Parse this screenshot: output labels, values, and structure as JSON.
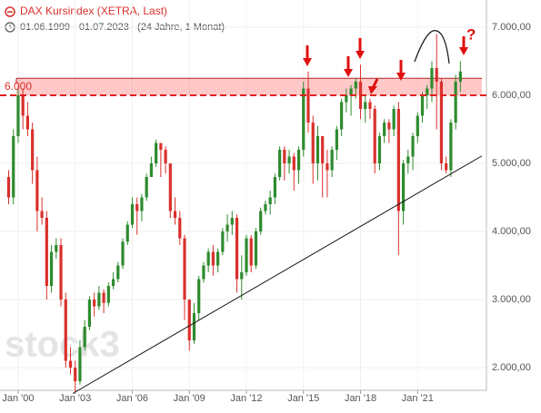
{
  "chart_data": {
    "type": "candlestick",
    "title": "DAX Kursindex (XETRA, Last)",
    "subtitle": "01.06.1999 - 01.07.2023   (24 Jahre, 1 Monat)",
    "watermark": "stock3",
    "annotation": "?",
    "up_color": "#2e8b2e",
    "down_color": "#d9302c",
    "grid": true,
    "ylim": [
      1700,
      7400
    ],
    "yticks": [
      {
        "value": 2000,
        "label": "2.000,00"
      },
      {
        "value": 3000,
        "label": "3.000,00"
      },
      {
        "value": 4000,
        "label": "4.000,00"
      },
      {
        "value": 5000,
        "label": "5.000,00"
      },
      {
        "value": 6000,
        "label": "6.000,00"
      },
      {
        "value": 7000,
        "label": "7.000,00"
      }
    ],
    "categories": [
      null,
      null,
      "Jan '00",
      null,
      null,
      null,
      null,
      null,
      null,
      null,
      null,
      null,
      null,
      null,
      "Jan '03",
      null,
      null,
      null,
      null,
      null,
      null,
      null,
      null,
      null,
      null,
      null,
      "Jan '06",
      null,
      null,
      null,
      null,
      null,
      null,
      null,
      null,
      null,
      null,
      null,
      "Jan '09",
      null,
      null,
      null,
      null,
      null,
      null,
      null,
      null,
      null,
      null,
      null,
      "Jan '12",
      null,
      null,
      null,
      null,
      null,
      null,
      null,
      null,
      null,
      null,
      null,
      "Jan '15",
      null,
      null,
      null,
      null,
      null,
      null,
      null,
      null,
      null,
      null,
      null,
      "Jan '18",
      null,
      null,
      null,
      null,
      null,
      null,
      null,
      null,
      null,
      null,
      null,
      "Jan '21",
      null,
      null,
      null,
      null,
      null,
      null,
      null,
      null,
      null
    ],
    "open": [
      4800,
      4500,
      5400,
      6000,
      5700,
      5500,
      4900,
      4300,
      4200,
      3200,
      3700,
      3800,
      3000,
      2100,
      2000,
      1800,
      2300,
      2600,
      3000,
      2900,
      3100,
      2950,
      3200,
      3300,
      3500,
      3850,
      4100,
      4400,
      4300,
      4500,
      4800,
      5000,
      5300,
      5200,
      5000,
      4300,
      4200,
      3900,
      3000,
      2400,
      2800,
      3300,
      3500,
      3700,
      3500,
      3700,
      4000,
      4100,
      4200,
      3300,
      3400,
      3900,
      3500,
      4000,
      4300,
      4400,
      4500,
      4800,
      5200,
      5000,
      5100,
      4900,
      5200,
      6100,
      5600,
      5000,
      5400,
      5000,
      4900,
      5200,
      5500,
      5900,
      6000,
      6100,
      6200,
      5800,
      5900,
      5800,
      5000,
      5400,
      5600,
      5500,
      5800,
      4300,
      5000,
      5100,
      5400,
      5700,
      6000,
      6100,
      6400,
      6200,
      5000,
      4900,
      5600,
      6200
    ],
    "high": [
      4900,
      5500,
      6100,
      6100,
      5900,
      5600,
      5100,
      4500,
      4300,
      3800,
      3900,
      3900,
      3100,
      2300,
      2100,
      2400,
      2700,
      3050,
      3100,
      3200,
      3150,
      3250,
      3400,
      3550,
      3900,
      4150,
      4500,
      4500,
      4550,
      4850,
      5100,
      5350,
      5300,
      5250,
      5000,
      4500,
      4300,
      3950,
      3000,
      2950,
      3350,
      3550,
      3750,
      3800,
      3750,
      4050,
      4250,
      4300,
      4250,
      3650,
      3950,
      3950,
      4050,
      4350,
      4450,
      4600,
      4850,
      5250,
      5250,
      5200,
      5150,
      5250,
      6200,
      6350,
      5700,
      5550,
      5400,
      5200,
      5250,
      5550,
      5950,
      6100,
      6150,
      6250,
      6450,
      6000,
      5950,
      5850,
      5450,
      5650,
      5650,
      5850,
      5900,
      5050,
      5200,
      5450,
      5750,
      6050,
      6150,
      6500,
      6900,
      6250,
      5100,
      5650,
      6300,
      6500
    ],
    "low": [
      4400,
      4400,
      5300,
      5500,
      5400,
      4700,
      4000,
      4100,
      3000,
      3100,
      3600,
      2900,
      2000,
      1900,
      1650,
      1750,
      2250,
      2550,
      2750,
      2850,
      2800,
      2900,
      3150,
      3250,
      3450,
      3800,
      4050,
      3950,
      4150,
      4450,
      4850,
      4950,
      4800,
      4850,
      4200,
      4100,
      3800,
      2700,
      2250,
      2350,
      2700,
      3250,
      3400,
      3350,
      3400,
      3650,
      3850,
      3950,
      3100,
      3000,
      3350,
      3400,
      3450,
      3950,
      4250,
      4250,
      4400,
      4750,
      4750,
      4850,
      4600,
      4700,
      5100,
      5450,
      4700,
      4750,
      4500,
      4500,
      4800,
      5050,
      5400,
      5750,
      5700,
      5950,
      5650,
      5600,
      5650,
      4850,
      4900,
      5300,
      5300,
      5400,
      3650,
      4100,
      4850,
      4900,
      5300,
      5600,
      5800,
      5900,
      5500,
      4900,
      4850,
      4800,
      5500,
      6050
    ],
    "close": [
      4500,
      5400,
      6000,
      5700,
      5500,
      4900,
      4300,
      4200,
      3200,
      3700,
      3800,
      3000,
      2100,
      2000,
      1800,
      2300,
      2600,
      3000,
      2900,
      3100,
      2950,
      3200,
      3300,
      3500,
      3850,
      4100,
      4400,
      4300,
      4500,
      4800,
      5000,
      5300,
      5200,
      5000,
      4300,
      4200,
      3900,
      3000,
      2400,
      2800,
      3300,
      3500,
      3700,
      3500,
      3700,
      4000,
      4100,
      4200,
      3300,
      3400,
      3900,
      3500,
      4000,
      4300,
      4400,
      4500,
      4800,
      5200,
      5000,
      5100,
      4900,
      5200,
      6100,
      5600,
      5000,
      5400,
      5000,
      4900,
      5200,
      5500,
      5900,
      6000,
      6100,
      6200,
      5800,
      5900,
      5800,
      5000,
      5400,
      5600,
      5500,
      5800,
      4300,
      5000,
      5100,
      5400,
      5700,
      6000,
      6100,
      6400,
      6200,
      5000,
      4900,
      5600,
      6200,
      6350
    ],
    "reference_line": {
      "value": 6000,
      "label": "6.000"
    },
    "resistance_zone": {
      "values": [
        6000,
        6250
      ]
    },
    "trend_line": {
      "values": [
        1620,
        5110
      ]
    }
  }
}
